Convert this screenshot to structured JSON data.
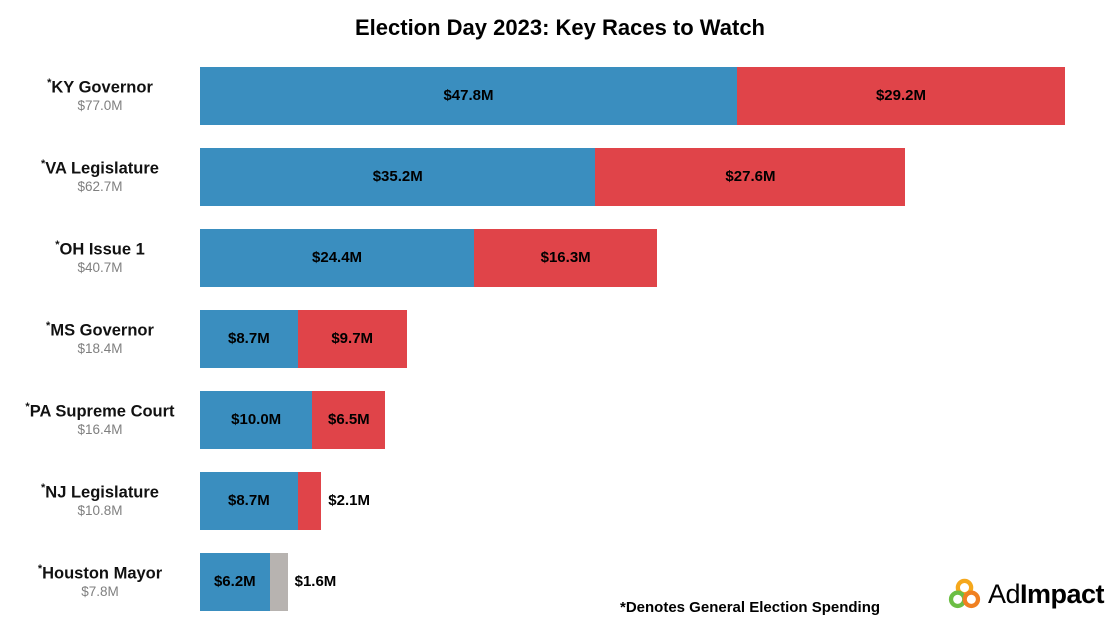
{
  "title": "Election Day 2023: Key Races to Watch",
  "footnote": "*Denotes General Election Spending",
  "logo": {
    "ad": "Ad",
    "impact": "Impact"
  },
  "colors": {
    "blue": "#3a8ebf",
    "red": "#e04449",
    "gray": "#b7b3b0",
    "total_gray": "#7f7f7f",
    "logo_yellow": "#F5A81C",
    "logo_green": "#6CBE45",
    "logo_orange": "#F08021"
  },
  "chart_data": {
    "type": "bar",
    "orientation": "horizontal",
    "stacked": true,
    "title": "Election Day 2023: Key Races to Watch",
    "xlim": [
      0,
      77
    ],
    "grid": false,
    "legend": "none",
    "races": [
      {
        "name": "KY Governor",
        "asterisk": "*",
        "total_label": "$77.0M",
        "segments": [
          {
            "value": 47.8,
            "label": "$47.8M",
            "color": "blue",
            "label_inside": true
          },
          {
            "value": 29.2,
            "label": "$29.2M",
            "color": "red",
            "label_inside": true
          }
        ]
      },
      {
        "name": "VA Legislature",
        "asterisk": "*",
        "total_label": "$62.7M",
        "segments": [
          {
            "value": 35.2,
            "label": "$35.2M",
            "color": "blue",
            "label_inside": true
          },
          {
            "value": 27.6,
            "label": "$27.6M",
            "color": "red",
            "label_inside": true
          }
        ]
      },
      {
        "name": "OH Issue 1",
        "asterisk": "*",
        "total_label": "$40.7M",
        "segments": [
          {
            "value": 24.4,
            "label": "$24.4M",
            "color": "blue",
            "label_inside": true
          },
          {
            "value": 16.3,
            "label": "$16.3M",
            "color": "red",
            "label_inside": true
          }
        ]
      },
      {
        "name": "MS Governor",
        "asterisk": "*",
        "total_label": "$18.4M",
        "segments": [
          {
            "value": 8.7,
            "label": "$8.7M",
            "color": "blue",
            "label_inside": true
          },
          {
            "value": 9.7,
            "label": "$9.7M",
            "color": "red",
            "label_inside": true
          }
        ]
      },
      {
        "name": "PA Supreme Court",
        "asterisk": "*",
        "total_label": "$16.4M",
        "segments": [
          {
            "value": 10.0,
            "label": "$10.0M",
            "color": "blue",
            "label_inside": true
          },
          {
            "value": 6.5,
            "label": "$6.5M",
            "color": "red",
            "label_inside": true
          }
        ]
      },
      {
        "name": "NJ Legislature",
        "asterisk": "*",
        "total_label": "$10.8M",
        "segments": [
          {
            "value": 8.7,
            "label": "$8.7M",
            "color": "blue",
            "label_inside": true
          },
          {
            "value": 2.1,
            "label": "$2.1M",
            "color": "red",
            "label_inside": false
          }
        ]
      },
      {
        "name": "Houston Mayor",
        "asterisk": "*",
        "total_label": "$7.8M",
        "segments": [
          {
            "value": 6.2,
            "label": "$6.2M",
            "color": "blue",
            "label_inside": true
          },
          {
            "value": 1.6,
            "label": "$1.6M",
            "color": "gray",
            "label_inside": false
          }
        ]
      }
    ]
  }
}
